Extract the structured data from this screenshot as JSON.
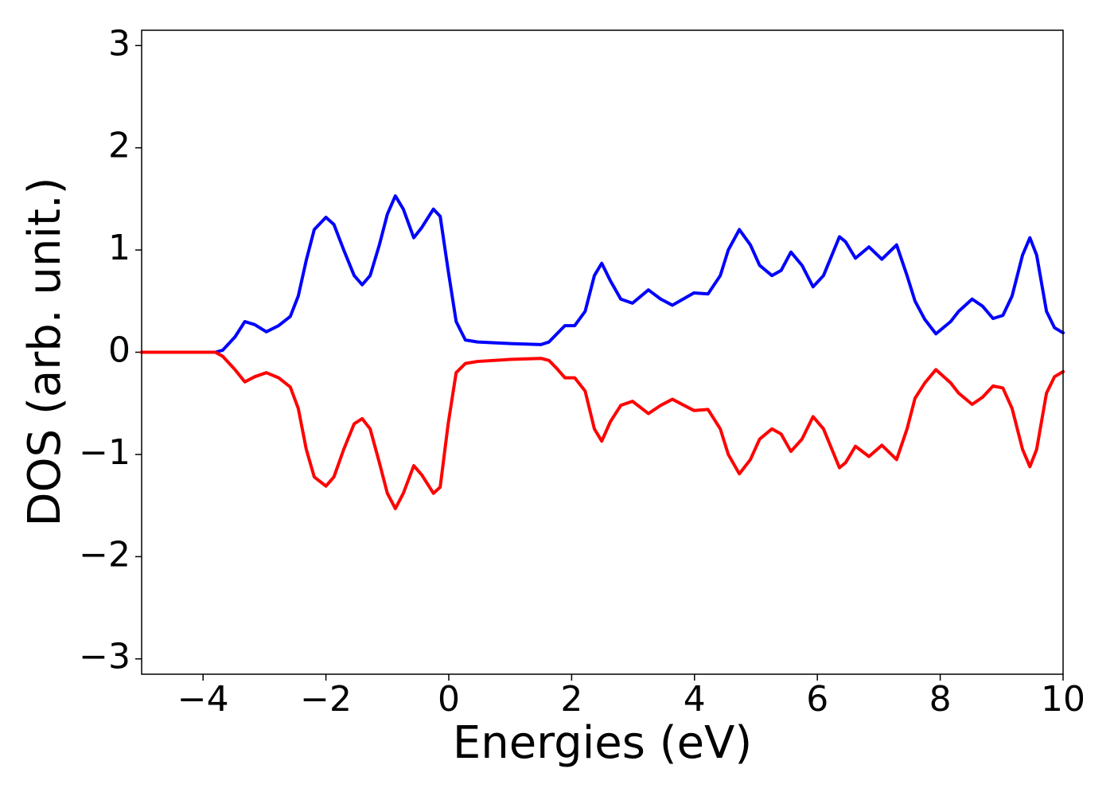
{
  "chart_data": {
    "type": "line",
    "xlabel": "Energies (eV)",
    "ylabel": "DOS (arb. unit.)",
    "x": [
      -5,
      -4.5,
      -4,
      -3.8,
      -3.68,
      -3.48,
      -3.32,
      -3.16,
      -2.97,
      -2.77,
      -2.58,
      -2.45,
      -2.32,
      -2.19,
      -2.0,
      -1.87,
      -1.71,
      -1.54,
      -1.41,
      -1.28,
      -1.13,
      -1.0,
      -0.87,
      -0.74,
      -0.57,
      -0.44,
      -0.25,
      -0.14,
      -0.01,
      0.12,
      0.27,
      0.47,
      1.0,
      1.5,
      1.63,
      1.76,
      1.89,
      2.05,
      2.22,
      2.37,
      2.49,
      2.63,
      2.8,
      2.99,
      3.25,
      3.45,
      3.64,
      3.99,
      4.22,
      4.42,
      4.55,
      4.73,
      4.91,
      5.06,
      5.26,
      5.41,
      5.57,
      5.75,
      5.93,
      6.1,
      6.36,
      6.46,
      6.62,
      6.84,
      7.05,
      7.29,
      7.46,
      7.59,
      7.75,
      7.93,
      8.17,
      8.3,
      8.52,
      8.69,
      8.86,
      9.02,
      9.17,
      9.34,
      9.46,
      9.57,
      9.73,
      9.86,
      10.0
    ],
    "series": [
      {
        "color": "#0000ff",
        "values": [
          0,
          0,
          0,
          0,
          0.02,
          0.15,
          0.3,
          0.27,
          0.2,
          0.26,
          0.35,
          0.55,
          0.9,
          1.2,
          1.32,
          1.25,
          1.0,
          0.75,
          0.66,
          0.75,
          1.05,
          1.35,
          1.53,
          1.4,
          1.12,
          1.22,
          1.4,
          1.33,
          0.8,
          0.3,
          0.12,
          0.1,
          0.085,
          0.075,
          0.1,
          0.18,
          0.26,
          0.26,
          0.4,
          0.75,
          0.87,
          0.7,
          0.52,
          0.48,
          0.61,
          0.52,
          0.46,
          0.58,
          0.57,
          0.75,
          1.0,
          1.2,
          1.05,
          0.85,
          0.75,
          0.8,
          0.98,
          0.85,
          0.64,
          0.75,
          1.13,
          1.08,
          0.92,
          1.03,
          0.91,
          1.05,
          0.75,
          0.5,
          0.32,
          0.18,
          0.3,
          0.4,
          0.52,
          0.45,
          0.33,
          0.36,
          0.55,
          0.95,
          1.12,
          0.95,
          0.4,
          0.24,
          0.19
        ]
      },
      {
        "color": "#ff0000",
        "values": [
          0,
          0,
          0,
          0,
          -0.04,
          -0.17,
          -0.29,
          -0.24,
          -0.2,
          -0.25,
          -0.34,
          -0.55,
          -0.95,
          -1.22,
          -1.31,
          -1.22,
          -0.95,
          -0.7,
          -0.65,
          -0.75,
          -1.08,
          -1.38,
          -1.53,
          -1.38,
          -1.11,
          -1.2,
          -1.38,
          -1.32,
          -0.7,
          -0.2,
          -0.11,
          -0.09,
          -0.07,
          -0.06,
          -0.08,
          -0.16,
          -0.25,
          -0.25,
          -0.38,
          -0.75,
          -0.87,
          -0.68,
          -0.52,
          -0.48,
          -0.6,
          -0.52,
          -0.46,
          -0.57,
          -0.56,
          -0.75,
          -1.0,
          -1.19,
          -1.05,
          -0.85,
          -0.75,
          -0.8,
          -0.97,
          -0.85,
          -0.63,
          -0.75,
          -1.13,
          -1.08,
          -0.92,
          -1.02,
          -0.91,
          -1.05,
          -0.75,
          -0.45,
          -0.3,
          -0.17,
          -0.3,
          -0.4,
          -0.51,
          -0.44,
          -0.33,
          -0.35,
          -0.55,
          -0.95,
          -1.12,
          -0.95,
          -0.4,
          -0.24,
          -0.19
        ]
      }
    ],
    "xlim": [
      -5,
      10
    ],
    "xticks": [
      {
        "value": -4,
        "label": "−4"
      },
      {
        "value": -2,
        "label": "−2"
      },
      0,
      2,
      4,
      6,
      8,
      10
    ],
    "ylim": [
      -3.15,
      3.15
    ],
    "yticks": [
      {
        "value": -3,
        "label": "−3"
      },
      {
        "value": -2,
        "label": "−2"
      },
      {
        "value": -1,
        "label": "−1"
      },
      0,
      1,
      2,
      3
    ]
  }
}
